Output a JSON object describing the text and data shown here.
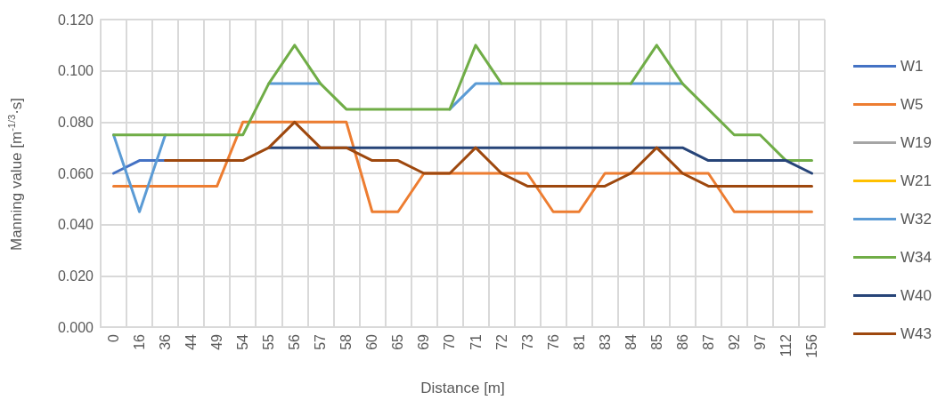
{
  "chart_data": {
    "type": "line",
    "xlabel": "Distance [m]",
    "ylabel": "Manning value [m$^{-1/3}$·s]",
    "categories": [
      "0",
      "16",
      "36",
      "44",
      "49",
      "54",
      "55",
      "56",
      "57",
      "58",
      "60",
      "65",
      "69",
      "70",
      "71",
      "72",
      "73",
      "76",
      "81",
      "83",
      "84",
      "85",
      "86",
      "87",
      "92",
      "97",
      "112",
      "156"
    ],
    "ylim": [
      0,
      0.12
    ],
    "yticks": [
      {
        "value": 0,
        "label": "0.000"
      },
      {
        "value": 0.02,
        "label": "0.020"
      },
      {
        "value": 0.04,
        "label": "0.040"
      },
      {
        "value": 0.06,
        "label": "0.060"
      },
      {
        "value": 0.08,
        "label": "0.080"
      },
      {
        "value": 0.1,
        "label": "0.100"
      },
      {
        "value": 0.12,
        "label": "0.120"
      }
    ],
    "grid": true,
    "legend": "right",
    "marker": "none",
    "line_style": "solid",
    "series": [
      {
        "name": "W1",
        "color": "#4472c4",
        "values": [
          0.06,
          0.065,
          0.065,
          null,
          null,
          null,
          null,
          null,
          null,
          null,
          null,
          null,
          null,
          null,
          null,
          null,
          null,
          null,
          null,
          null,
          null,
          null,
          null,
          null,
          null,
          null,
          null,
          null
        ]
      },
      {
        "name": "W5",
        "color": "#ed7d31",
        "values": [
          0.055,
          0.055,
          0.055,
          0.055,
          0.055,
          0.08,
          0.08,
          0.08,
          0.08,
          0.08,
          0.045,
          0.045,
          0.06,
          0.06,
          0.06,
          0.06,
          0.06,
          0.045,
          0.045,
          0.06,
          0.06,
          0.06,
          0.06,
          0.06,
          0.045,
          0.045,
          0.045,
          0.045
        ]
      },
      {
        "name": "W19",
        "color": "#a5a5a5",
        "values": [
          null,
          null,
          null,
          null,
          null,
          null,
          null,
          null,
          null,
          null,
          null,
          null,
          null,
          null,
          null,
          null,
          null,
          null,
          null,
          null,
          null,
          null,
          null,
          null,
          null,
          null,
          null,
          null
        ]
      },
      {
        "name": "W21",
        "color": "#ffc000",
        "values": [
          null,
          null,
          null,
          null,
          null,
          null,
          null,
          null,
          null,
          null,
          null,
          null,
          null,
          null,
          null,
          null,
          null,
          null,
          null,
          null,
          null,
          null,
          null,
          null,
          null,
          null,
          null,
          null
        ]
      },
      {
        "name": "W32",
        "color": "#5b9bd5",
        "values": [
          0.075,
          0.045,
          0.075,
          null,
          null,
          null,
          0.095,
          0.095,
          0.095,
          null,
          null,
          null,
          null,
          0.085,
          0.095,
          0.095,
          null,
          null,
          null,
          null,
          0.095,
          0.095,
          0.095,
          null,
          null,
          null,
          null,
          null
        ]
      },
      {
        "name": "W34",
        "color": "#70ad47",
        "values": [
          0.075,
          0.075,
          0.075,
          0.075,
          0.075,
          0.075,
          0.095,
          0.11,
          0.095,
          0.085,
          0.085,
          0.085,
          0.085,
          0.085,
          0.11,
          0.095,
          0.095,
          0.095,
          0.095,
          0.095,
          0.095,
          0.11,
          0.095,
          0.085,
          0.075,
          0.075,
          0.065,
          0.065
        ]
      },
      {
        "name": "W40",
        "color": "#264478",
        "values": [
          null,
          null,
          null,
          null,
          null,
          null,
          0.07,
          0.07,
          0.07,
          0.07,
          0.07,
          0.07,
          0.07,
          0.07,
          0.07,
          0.07,
          0.07,
          0.07,
          0.07,
          0.07,
          0.07,
          0.07,
          0.07,
          0.065,
          0.065,
          0.065,
          0.065,
          0.06
        ]
      },
      {
        "name": "W43",
        "color": "#9e480e",
        "values": [
          null,
          null,
          0.065,
          0.065,
          0.065,
          0.065,
          0.07,
          0.08,
          0.07,
          0.07,
          0.065,
          0.065,
          0.06,
          0.06,
          0.07,
          0.06,
          0.055,
          0.055,
          0.055,
          0.055,
          0.06,
          0.07,
          0.06,
          0.055,
          0.055,
          0.055,
          0.055,
          0.055
        ]
      }
    ]
  }
}
